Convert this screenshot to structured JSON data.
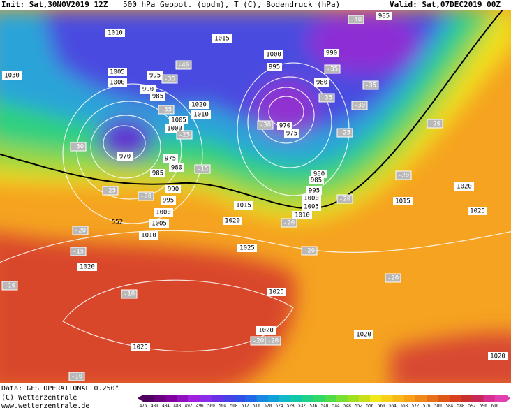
{
  "header": {
    "init": "Init: Sat,30NOV2019 12Z",
    "title": "500 hPa Geopot. (gpdm), T (C), Bodendruck (hPa)",
    "valid": "Valid: Sat,07DEC2019 00Z"
  },
  "map": {
    "contour_label": "552",
    "pressure_labels": [
      "1010",
      "1015",
      "1030",
      "1005",
      "1000",
      "995",
      "990",
      "985",
      "1020",
      "1010",
      "1005",
      "1000",
      "975",
      "980",
      "985",
      "970",
      "990",
      "995",
      "1000",
      "1005",
      "1010",
      "1000",
      "995",
      "990",
      "985",
      "980",
      "970",
      "975",
      "980",
      "985",
      "995",
      "1000",
      "1005",
      "1010",
      "1015",
      "1020",
      "1025",
      "1020",
      "1025",
      "1020",
      "1025",
      "1020",
      "1020",
      "1015",
      "1025",
      "1020"
    ],
    "temperature_labels": [
      "-40",
      "-40",
      "-35",
      "-35",
      "-35",
      "-30",
      "-35",
      "-35",
      "-30",
      "-25",
      "-30",
      "-25",
      "-15",
      "-25",
      "-20",
      "-20",
      "-20",
      "-20",
      "-20",
      "-20",
      "-15",
      "-20",
      "-10",
      "-10",
      "-20",
      "-20",
      "-20",
      "-10"
    ]
  },
  "footer": {
    "source": "Data: GFS OPERATIONAL 0.250°",
    "copyright": "(C) Wetterzentrale",
    "url": "www.wetterzentrale.de"
  },
  "scale": {
    "labels": [
      476,
      480,
      484,
      488,
      492,
      496,
      500,
      504,
      508,
      512,
      516,
      520,
      524,
      528,
      532,
      536,
      540,
      544,
      548,
      552,
      556,
      560,
      564,
      568,
      572,
      576,
      580,
      584,
      588,
      592,
      596,
      600
    ]
  }
}
